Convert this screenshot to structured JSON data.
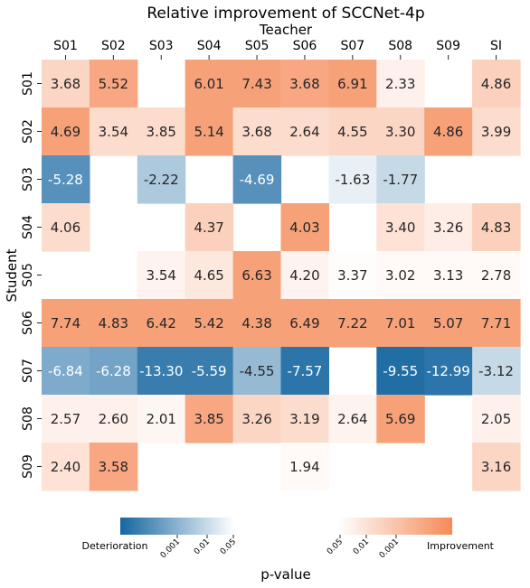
{
  "chart_data": {
    "type": "heatmap",
    "title": "Relative improvement of SCCNet-4p",
    "xlabel": "Teacher",
    "ylabel": "Student",
    "x_categories": [
      "S01",
      "S02",
      "S03",
      "S04",
      "S05",
      "S06",
      "S07",
      "S08",
      "S09",
      "SI"
    ],
    "y_categories": [
      "S01",
      "S02",
      "S03",
      "S04",
      "S05",
      "S06",
      "S07",
      "S08",
      "S09"
    ],
    "cells": [
      [
        {
          "v": "3.68",
          "s": 0.35
        },
        {
          "v": "5.52",
          "s": 0.75
        },
        null,
        {
          "v": "6.01",
          "s": 0.8
        },
        {
          "v": "7.43",
          "s": 0.8
        },
        {
          "v": "3.68",
          "s": 0.75
        },
        {
          "v": "6.91",
          "s": 0.8
        },
        {
          "v": "2.33",
          "s": 0.12
        },
        null,
        {
          "v": "4.86",
          "s": 0.4
        }
      ],
      [
        {
          "v": "4.69",
          "s": 0.8
        },
        {
          "v": "3.54",
          "s": 0.3
        },
        {
          "v": "3.85",
          "s": 0.3
        },
        {
          "v": "5.14",
          "s": 0.8
        },
        {
          "v": "3.68",
          "s": 0.3
        },
        {
          "v": "2.64",
          "s": 0.3
        },
        {
          "v": "4.55",
          "s": 0.35
        },
        {
          "v": "3.30",
          "s": 0.35
        },
        {
          "v": "4.86",
          "s": 0.8
        },
        {
          "v": "3.99",
          "s": 0.3
        }
      ],
      [
        {
          "v": "-5.28",
          "s": -0.72
        },
        null,
        {
          "v": "-2.22",
          "s": -0.35
        },
        null,
        {
          "v": "-4.69",
          "s": -0.72
        },
        null,
        {
          "v": "-1.63",
          "s": -0.1
        },
        {
          "v": "-1.77",
          "s": -0.25
        },
        null,
        null
      ],
      [
        {
          "v": "4.06",
          "s": 0.3
        },
        null,
        null,
        {
          "v": "4.37",
          "s": 0.4
        },
        null,
        {
          "v": "4.03",
          "s": 0.8
        },
        null,
        {
          "v": "3.40",
          "s": 0.25
        },
        {
          "v": "3.26",
          "s": 0.15
        },
        {
          "v": "4.83",
          "s": 0.4
        }
      ],
      [
        null,
        null,
        {
          "v": "3.54",
          "s": 0.1
        },
        {
          "v": "4.65",
          "s": 0.2
        },
        {
          "v": "6.63",
          "s": 0.8
        },
        {
          "v": "4.20",
          "s": 0.1
        },
        {
          "v": "3.37",
          "s": 0.02
        },
        {
          "v": "3.02",
          "s": 0.05
        },
        {
          "v": "3.13",
          "s": 0.05
        },
        {
          "v": "2.78",
          "s": 0.05
        }
      ],
      [
        {
          "v": "7.74",
          "s": 0.8
        },
        {
          "v": "4.83",
          "s": 0.8
        },
        {
          "v": "6.42",
          "s": 0.8
        },
        {
          "v": "5.42",
          "s": 0.8
        },
        {
          "v": "4.38",
          "s": 0.8
        },
        {
          "v": "6.49",
          "s": 0.8
        },
        {
          "v": "7.22",
          "s": 0.8
        },
        {
          "v": "7.01",
          "s": 0.8
        },
        {
          "v": "5.07",
          "s": 0.8
        },
        {
          "v": "7.71",
          "s": 0.8
        }
      ],
      [
        {
          "v": "-6.84",
          "s": -0.55
        },
        {
          "v": "-6.28",
          "s": -0.6
        },
        {
          "v": "-13.30",
          "s": -0.85
        },
        {
          "v": "-5.59",
          "s": -0.85
        },
        {
          "v": "-4.55",
          "s": -0.45
        },
        {
          "v": "-7.57",
          "s": -0.9
        },
        null,
        {
          "v": "-9.55",
          "s": -0.95
        },
        {
          "v": "-12.99",
          "s": -0.9
        },
        {
          "v": "-3.12",
          "s": -0.25
        }
      ],
      [
        {
          "v": "2.57",
          "s": 0.12
        },
        {
          "v": "2.60",
          "s": 0.12
        },
        {
          "v": "2.01",
          "s": 0.08
        },
        {
          "v": "3.85",
          "s": 0.75
        },
        {
          "v": "3.26",
          "s": 0.35
        },
        {
          "v": "3.19",
          "s": 0.3
        },
        {
          "v": "2.64",
          "s": 0.1
        },
        {
          "v": "5.69",
          "s": 0.8
        },
        null,
        {
          "v": "2.05",
          "s": 0.12
        }
      ],
      [
        {
          "v": "2.40",
          "s": 0.25
        },
        {
          "v": "3.58",
          "s": 0.75
        },
        null,
        null,
        null,
        {
          "v": "1.94",
          "s": 0.05
        },
        null,
        null,
        null,
        {
          "v": "3.16",
          "s": 0.35
        }
      ]
    ],
    "colorbar": {
      "xlabel": "p-value",
      "negative": {
        "label": "Deterioration",
        "ticks": [
          "0.001",
          "0.01",
          "0.05"
        ]
      },
      "positive": {
        "label": "Improvement",
        "ticks": [
          "0.05",
          "0.01",
          "0.001"
        ]
      }
    },
    "colors": {
      "blue": "#1566a0",
      "orange": "#f58a58",
      "white": "#ffffff",
      "text_dark": "#262626",
      "text_light": "#ffffff"
    }
  }
}
